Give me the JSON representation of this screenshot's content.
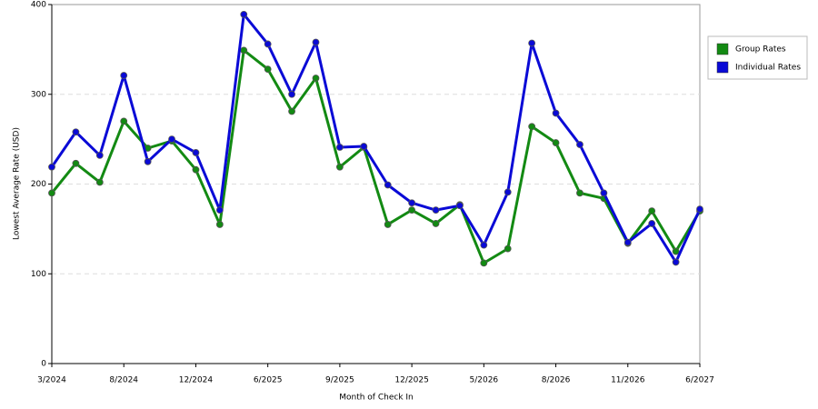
{
  "chart_data": {
    "type": "line",
    "x_label": "Month of Check In",
    "y_label": "Lowest Average Rate (USD)",
    "categories": [
      "3/2024",
      null,
      null,
      "8/2024",
      null,
      null,
      "12/2024",
      null,
      null,
      "6/2025",
      null,
      null,
      "9/2025",
      null,
      null,
      "12/2025",
      null,
      null,
      "5/2026",
      null,
      null,
      "8/2026",
      null,
      null,
      "11/2026",
      null,
      null,
      "6/2027"
    ],
    "series": [
      {
        "name": "Group Rates",
        "color": "#138a13",
        "values": [
          190,
          223,
          202,
          270,
          240,
          248,
          216,
          155,
          349,
          328,
          281,
          318,
          219,
          241,
          155,
          171,
          156,
          177,
          112,
          128,
          264,
          246,
          190,
          184,
          134,
          170,
          125,
          170
        ]
      },
      {
        "name": "Individual Rates",
        "color": "#0a0ad6",
        "values": [
          219,
          258,
          232,
          321,
          225,
          250,
          235,
          171,
          389,
          356,
          300,
          358,
          241,
          242,
          199,
          179,
          171,
          176,
          132,
          191,
          357,
          279,
          244,
          190,
          135,
          156,
          113,
          172
        ]
      }
    ],
    "ylim": [
      0,
      400
    ],
    "yticks": [
      0,
      100,
      200,
      300,
      400
    ],
    "grid": true,
    "legend": "right"
  }
}
